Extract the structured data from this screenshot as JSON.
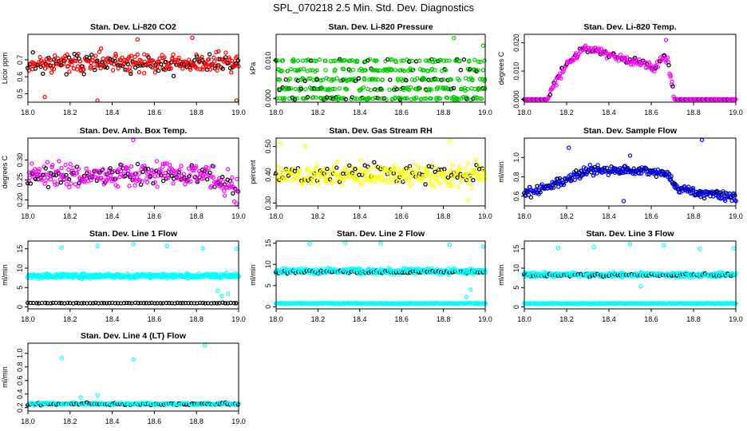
{
  "title": "SPL_070218  2.5 Min. Std. Dev. Diagnostics",
  "chart_data": [
    {
      "type": "scatter",
      "title": "Stan. Dev. Li-820 CO2",
      "ylabel": "Licor ppm",
      "xlabel": "",
      "xlim": [
        18.0,
        19.0
      ],
      "ylim": [
        0.45,
        0.85
      ],
      "xticks": [
        "18.0",
        "18.2",
        "18.4",
        "18.6",
        "18.8",
        "19.0"
      ],
      "yticks": [
        {
          "v": 0.5,
          "label": "0.5"
        },
        {
          "v": 0.6,
          "label": "0.6"
        },
        {
          "v": 0.7,
          "label": "0.7"
        }
      ],
      "colors": [
        "#ff0000",
        "#000000"
      ],
      "gen": {
        "kind": "band",
        "base": 0.68,
        "spread": 0.055,
        "n": 330,
        "blackEvery": 4,
        "seed": 11,
        "outliers": [
          [
            18.08,
            0.48
          ],
          [
            18.33,
            0.46
          ],
          [
            18.78,
            0.83
          ],
          [
            18.99,
            0.46
          ],
          [
            18.52,
            0.82
          ]
        ]
      }
    },
    {
      "type": "scatter",
      "title": "Stan. Dev. Li-820 Pressure",
      "ylabel": "kPa",
      "xlabel": "",
      "xlim": [
        18.0,
        19.0
      ],
      "ylim": [
        -0.001,
        0.017
      ],
      "xticks": [
        "18.0",
        "18.2",
        "18.4",
        "18.6",
        "18.8",
        "19.0"
      ],
      "yticks": [
        {
          "v": 0.0,
          "label": "0.000"
        },
        {
          "v": 0.01,
          "label": "0.010"
        }
      ],
      "colors": [
        "#00cc00",
        "#000000"
      ],
      "gen": {
        "kind": "levels",
        "levels": [
          0.0,
          0.0025,
          0.005,
          0.0075,
          0.01
        ],
        "n": 330,
        "blackEvery": 5,
        "seed": 7,
        "outliers": [
          [
            18.85,
            0.016
          ],
          [
            18.99,
            0.014
          ]
        ]
      }
    },
    {
      "type": "scatter",
      "title": "Stan. Dev. Li-820 Temp.",
      "ylabel": "degrees C",
      "xlabel": "",
      "xlim": [
        18.0,
        19.0
      ],
      "ylim": [
        -0.001,
        0.023
      ],
      "xticks": [
        "18.0",
        "18.2",
        "18.4",
        "18.6",
        "18.8",
        "19.0"
      ],
      "yticks": [
        {
          "v": 0.0,
          "label": "0.000"
        },
        {
          "v": 0.01,
          "label": "0.010"
        },
        {
          "v": 0.02,
          "label": "0.020"
        }
      ],
      "colors": [
        "#ff00ff",
        "#000000"
      ],
      "gen": {
        "kind": "curve",
        "curve": [
          [
            18.0,
            0.0
          ],
          [
            18.11,
            0.0
          ],
          [
            18.13,
            0.004
          ],
          [
            18.2,
            0.012
          ],
          [
            18.28,
            0.018
          ],
          [
            18.36,
            0.017
          ],
          [
            18.44,
            0.015
          ],
          [
            18.55,
            0.013
          ],
          [
            18.62,
            0.011
          ],
          [
            18.66,
            0.016
          ],
          [
            18.68,
            0.013
          ],
          [
            18.71,
            0.0
          ],
          [
            19.0,
            0.0
          ]
        ],
        "spread": 0.0012,
        "n": 300,
        "blackEvery": 6,
        "seed": 3,
        "outliers": [
          [
            18.67,
            0.021
          ]
        ]
      }
    },
    {
      "type": "scatter",
      "title": "Stan. Dev. Amb. Box Temp.",
      "ylabel": "degrees C",
      "xlabel": "",
      "xlim": [
        18.0,
        19.0
      ],
      "ylim": [
        0.185,
        0.355
      ],
      "xticks": [
        "18.0",
        "18.2",
        "18.4",
        "18.6",
        "18.8",
        "19.0"
      ],
      "yticks": [
        {
          "v": 0.2,
          "label": "0.20"
        },
        {
          "v": 0.25,
          "label": "0.25"
        },
        {
          "v": 0.3,
          "label": "0.30"
        }
      ],
      "colors": [
        "#ff00ff",
        "#000000"
      ],
      "gen": {
        "kind": "band",
        "base": 0.262,
        "spread": 0.03,
        "n": 330,
        "blackEvery": 4,
        "seed": 19,
        "tail": {
          "from": 18.8,
          "to": 19.0,
          "drop": 0.03
        },
        "outliers": [
          [
            18.5,
            0.35
          ],
          [
            18.99,
            0.19
          ]
        ]
      }
    },
    {
      "type": "scatter",
      "title": "Stan. Dev. Gas Stream RH",
      "ylabel": "percent",
      "xlabel": "",
      "xlim": [
        18.0,
        19.0
      ],
      "ylim": [
        0.29,
        0.53
      ],
      "xticks": [
        "18.0",
        "18.2",
        "18.4",
        "18.6",
        "18.8",
        "19.0"
      ],
      "yticks": [
        {
          "v": 0.3,
          "label": "0.30"
        },
        {
          "v": 0.4,
          "label": "0.40"
        },
        {
          "v": 0.5,
          "label": "0.50"
        }
      ],
      "colors": [
        "#ffff00",
        "#000000"
      ],
      "gen": {
        "kind": "band",
        "base": 0.4,
        "spread": 0.035,
        "n": 330,
        "blackEvery": 5,
        "seed": 23,
        "outliers": [
          [
            18.02,
            0.51
          ],
          [
            18.14,
            0.5
          ],
          [
            18.83,
            0.52
          ],
          [
            18.92,
            0.31
          ]
        ]
      }
    },
    {
      "type": "scatter",
      "title": "Stan. Dev. Sample Flow",
      "ylabel": "ml/min",
      "xlabel": "",
      "xlim": [
        18.0,
        19.0
      ],
      "ylim": [
        0.5,
        1.2
      ],
      "xticks": [
        "18.0",
        "18.2",
        "18.4",
        "18.6",
        "18.8",
        "19.0"
      ],
      "yticks": [
        {
          "v": 0.6,
          "label": "0.6"
        },
        {
          "v": 0.8,
          "label": "0.8"
        },
        {
          "v": 1.0,
          "label": "1.0"
        }
      ],
      "colors": [
        "#0000ff",
        "#000000"
      ],
      "gen": {
        "kind": "curve",
        "curve": [
          [
            18.0,
            0.63
          ],
          [
            18.1,
            0.68
          ],
          [
            18.2,
            0.78
          ],
          [
            18.3,
            0.86
          ],
          [
            18.4,
            0.88
          ],
          [
            18.5,
            0.86
          ],
          [
            18.6,
            0.87
          ],
          [
            18.67,
            0.84
          ],
          [
            18.72,
            0.68
          ],
          [
            18.8,
            0.64
          ],
          [
            18.9,
            0.62
          ],
          [
            19.0,
            0.59
          ]
        ],
        "spread": 0.045,
        "n": 330,
        "blackEvery": 5,
        "seed": 29,
        "outliers": [
          [
            18.21,
            1.1
          ],
          [
            18.84,
            1.18
          ],
          [
            18.5,
            1.02
          ],
          [
            18.47,
            0.55
          ]
        ]
      }
    },
    {
      "type": "scatter",
      "title": "Stan. Dev. Line 1 Flow",
      "ylabel": "ml/min",
      "xlabel": "",
      "xlim": [
        18.0,
        19.0
      ],
      "ylim": [
        -0.5,
        17
      ],
      "xticks": [
        "18.0",
        "18.2",
        "18.4",
        "18.6",
        "18.8",
        "19.0"
      ],
      "yticks": [
        {
          "v": 0,
          "label": "0"
        },
        {
          "v": 5,
          "label": "5"
        },
        {
          "v": 10,
          "label": "10"
        },
        {
          "v": 15,
          "label": "15"
        }
      ],
      "colors": [
        "#00ffff",
        "#000000"
      ],
      "gen": {
        "kind": "twoband",
        "colorBase": 8.0,
        "colorSpread": 0.55,
        "blackBase": 1.0,
        "blackSpread": 0.08,
        "n": 300,
        "seed": 31,
        "outliers": [
          [
            18.16,
            15.3
          ],
          [
            18.33,
            15.8
          ],
          [
            18.5,
            16.2
          ],
          [
            18.66,
            15.7
          ],
          [
            18.83,
            15.1
          ],
          [
            18.99,
            15.0
          ],
          [
            18.92,
            2.8
          ],
          [
            18.9,
            4.2
          ],
          [
            18.95,
            3.4
          ]
        ]
      }
    },
    {
      "type": "scatter",
      "title": "Stan. Dev. Line 2 Flow",
      "ylabel": "ml/min",
      "xlabel": "",
      "xlim": [
        18.0,
        19.0
      ],
      "ylim": [
        -0.5,
        15.5
      ],
      "xticks": [
        "18.0",
        "18.2",
        "18.4",
        "18.6",
        "18.8",
        "19.0"
      ],
      "yticks": [
        {
          "v": 0,
          "label": "0"
        },
        {
          "v": 5,
          "label": "5"
        },
        {
          "v": 10,
          "label": "10"
        },
        {
          "v": 15,
          "label": "15"
        }
      ],
      "colors": [
        "#00ffff",
        "#000000"
      ],
      "gen": {
        "kind": "twoband",
        "colorBase": 8.4,
        "colorSpread": 0.6,
        "blackBase": 8.2,
        "blackSpread": 0.35,
        "bottomBase": 0.8,
        "n": 300,
        "seed": 37,
        "outliers": [
          [
            18.16,
            14.8
          ],
          [
            18.33,
            15.1
          ],
          [
            18.5,
            15.0
          ],
          [
            18.83,
            14.6
          ],
          [
            18.99,
            14.2
          ],
          [
            18.91,
            2.3
          ],
          [
            18.93,
            4.0
          ]
        ]
      }
    },
    {
      "type": "scatter",
      "title": "Stan. Dev. Line 3 Flow",
      "ylabel": "ml/min",
      "xlabel": "",
      "xlim": [
        18.0,
        19.0
      ],
      "ylim": [
        -0.5,
        17
      ],
      "xticks": [
        "18.0",
        "18.2",
        "18.4",
        "18.6",
        "18.8",
        "19.0"
      ],
      "yticks": [
        {
          "v": 0,
          "label": "0"
        },
        {
          "v": 5,
          "label": "5"
        },
        {
          "v": 10,
          "label": "10"
        },
        {
          "v": 15,
          "label": "15"
        }
      ],
      "colors": [
        "#00ffff",
        "#000000"
      ],
      "gen": {
        "kind": "twoband",
        "colorBase": 8.3,
        "colorSpread": 0.5,
        "blackBase": 8.2,
        "blackSpread": 0.35,
        "bottomBase": 0.9,
        "n": 300,
        "seed": 41,
        "outliers": [
          [
            18.16,
            15.2
          ],
          [
            18.33,
            15.5
          ],
          [
            18.5,
            16.2
          ],
          [
            18.66,
            15.9
          ],
          [
            18.83,
            15.0
          ],
          [
            18.99,
            15.1
          ],
          [
            18.55,
            5.3
          ]
        ]
      }
    },
    {
      "type": "scatter",
      "title": "Stan. Dev. Line 4 (LT) Flow",
      "ylabel": "ml/min",
      "xlabel": "",
      "xlim": [
        18.0,
        19.0
      ],
      "ylim": [
        0.15,
        1.15
      ],
      "xticks": [
        "18.0",
        "18.2",
        "18.4",
        "18.6",
        "18.8",
        "19.0"
      ],
      "yticks": [
        {
          "v": 0.2,
          "label": "0.2"
        },
        {
          "v": 0.4,
          "label": "0.4"
        },
        {
          "v": 0.6,
          "label": "0.6"
        },
        {
          "v": 0.8,
          "label": "0.8"
        },
        {
          "v": 1.0,
          "label": "1.0"
        }
      ],
      "colors": [
        "#00ffff",
        "#000000"
      ],
      "gen": {
        "kind": "band",
        "base": 0.255,
        "spread": 0.015,
        "n": 330,
        "blackEvery": 4,
        "seed": 43,
        "outliers": [
          [
            18.16,
            0.93
          ],
          [
            18.5,
            0.91
          ],
          [
            18.84,
            1.12
          ],
          [
            18.33,
            0.38
          ],
          [
            18.25,
            0.35
          ]
        ]
      }
    }
  ]
}
